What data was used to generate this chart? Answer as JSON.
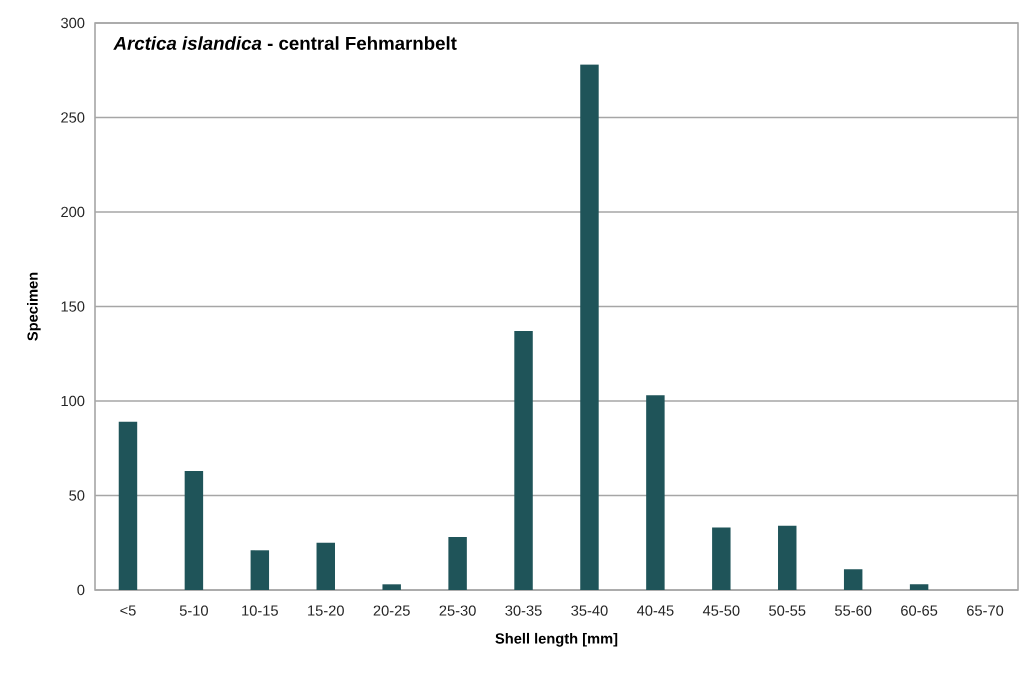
{
  "chart_data": {
    "type": "bar",
    "title": "*Arctica islandica* - central Fehmarnbelt",
    "xlabel": "Shell length [mm]",
    "ylabel": "Specimen",
    "categories": [
      "<5",
      "5-10",
      "10-15",
      "15-20",
      "20-25",
      "25-30",
      "30-35",
      "35-40",
      "40-45",
      "45-50",
      "50-55",
      "55-60",
      "60-65",
      "65-70"
    ],
    "values": [
      89,
      63,
      21,
      25,
      3,
      28,
      137,
      278,
      103,
      33,
      34,
      11,
      3,
      0
    ],
    "color": "#1f5459",
    "ylim": [
      0,
      300
    ],
    "yticks": [
      0,
      50,
      100,
      150,
      200,
      250,
      300
    ],
    "grid": "y"
  }
}
